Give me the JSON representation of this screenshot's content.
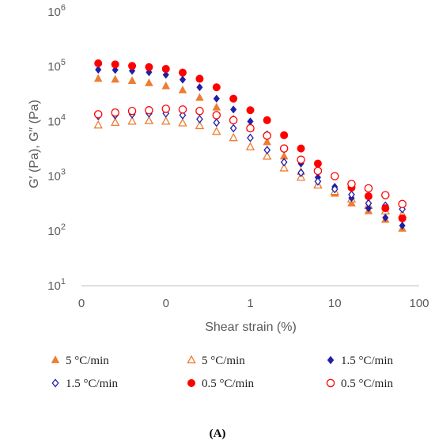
{
  "chart_data": {
    "type": "scatter",
    "xlabel": "Shear strain (%)",
    "ylabel": "G′ (Pa), G″ (Pa)",
    "x_scale": "log",
    "y_scale": "log",
    "xlim": [
      0.01,
      100
    ],
    "ylim": [
      10,
      1000000
    ],
    "x_ticks": [
      {
        "value": 0.01,
        "label": "0"
      },
      {
        "value": 0.1,
        "label": "0"
      },
      {
        "value": 1,
        "label": "1"
      },
      {
        "value": 10,
        "label": "10"
      },
      {
        "value": 100,
        "label": "100"
      }
    ],
    "y_ticks": [
      {
        "value": 10,
        "base": "10",
        "exp": "1"
      },
      {
        "value": 100,
        "base": "10",
        "exp": "2"
      },
      {
        "value": 1000,
        "base": "10",
        "exp": "3"
      },
      {
        "value": 10000,
        "base": "10",
        "exp": "4"
      },
      {
        "value": 100000,
        "base": "10",
        "exp": "5"
      },
      {
        "value": 1000000,
        "base": "10",
        "exp": "6"
      }
    ],
    "grid": false,
    "legend_position": "bottom",
    "caption": "(A)",
    "x": [
      0.0158,
      0.0251,
      0.0398,
      0.0631,
      0.1,
      0.158,
      0.251,
      0.398,
      0.631,
      1.0,
      1.58,
      2.51,
      3.98,
      6.31,
      10.0,
      15.8,
      25.1,
      39.8,
      63.1
    ],
    "series": [
      {
        "name": "5 °C/min",
        "marker": "triangle",
        "filled": true,
        "color": "#ED7D31",
        "values": [
          60000,
          58000,
          55000,
          50000,
          44000,
          37000,
          27000,
          18000,
          11000,
          7500,
          4200,
          2300,
          1200,
          700,
          480,
          320,
          230,
          160,
          110
        ]
      },
      {
        "name": "5 °C/min",
        "marker": "triangle",
        "filled": false,
        "color": "#ED7D31",
        "values": [
          8500,
          9500,
          10000,
          10200,
          10000,
          9300,
          8300,
          6500,
          5000,
          3400,
          2300,
          1400,
          950,
          680,
          520,
          380,
          290,
          230,
          200
        ]
      },
      {
        "name": "1.5 °C/min",
        "marker": "diamond",
        "filled": true,
        "color": "#1F1FA8",
        "values": [
          88000,
          87000,
          84000,
          79000,
          71000,
          58000,
          42000,
          26000,
          16500,
          10000,
          5800,
          3100,
          1700,
          950,
          640,
          400,
          260,
          175,
          125
        ]
      },
      {
        "name": "1.5 °C/min",
        "marker": "diamond",
        "filled": false,
        "color": "#1F1FA8",
        "values": [
          12500,
          13000,
          13500,
          14000,
          14000,
          13000,
          11000,
          9500,
          7500,
          5000,
          3000,
          1800,
          1150,
          800,
          580,
          460,
          320,
          290,
          250
        ]
      },
      {
        "name": "0.5 °C/min",
        "marker": "circle",
        "filled": true,
        "color": "#FF0000",
        "values": [
          115000,
          110000,
          103000,
          98000,
          91000,
          78000,
          60000,
          42000,
          26000,
          16000,
          10500,
          5600,
          3200,
          1700,
          1000,
          620,
          430,
          260,
          170
        ]
      },
      {
        "name": "0.5 °C/min",
        "marker": "circle",
        "filled": false,
        "color": "#FF0000",
        "values": [
          13500,
          14500,
          15500,
          16000,
          17000,
          16500,
          15500,
          13000,
          10500,
          7500,
          5500,
          3200,
          2000,
          1250,
          1000,
          720,
          600,
          450,
          310
        ]
      }
    ]
  }
}
